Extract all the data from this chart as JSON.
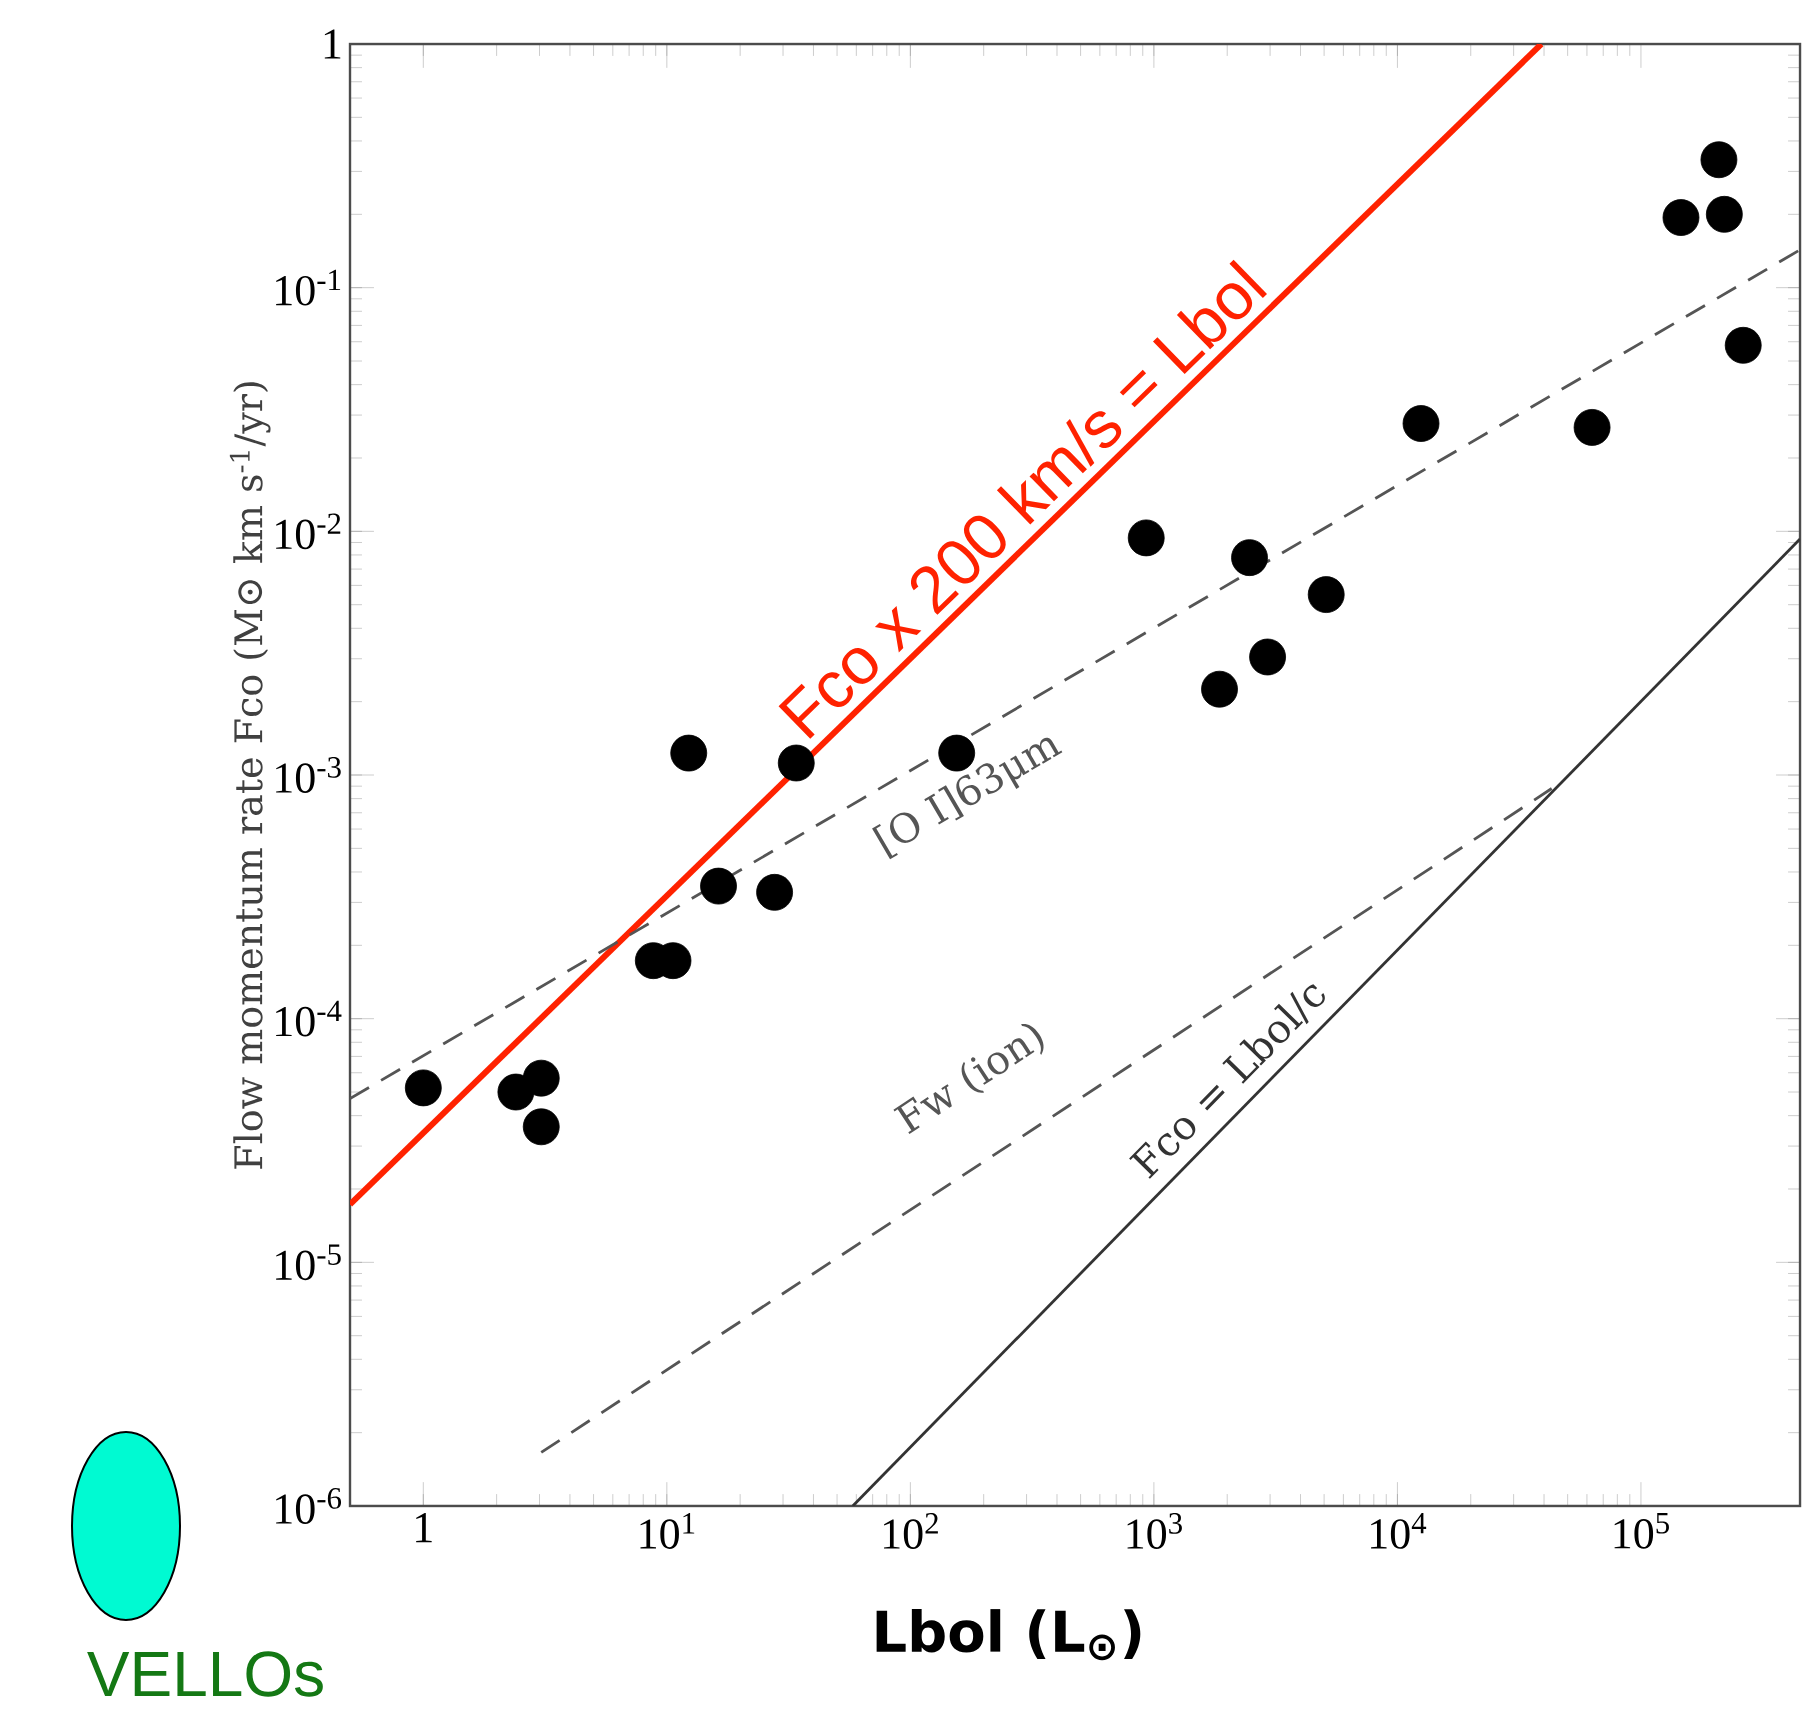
{
  "chart_data": {
    "type": "scatter",
    "xlabel": "Lbol (L$_{⊙}$)",
    "ylabel": "Flow momentum rate Fco (M⊙ km s$^{-1}$/yr)",
    "xlim": [
      0.5,
      450000
    ],
    "ylim": [
      1e-06,
      1
    ],
    "log": "xy",
    "grid": false,
    "xticks": [
      {
        "value": 1,
        "label": "1"
      },
      {
        "value": 10,
        "label": "10$^{1}$"
      },
      {
        "value": 100,
        "label": "10$^{2}$"
      },
      {
        "value": 1000,
        "label": "10$^{3}$"
      },
      {
        "value": 10000,
        "label": "10$^{4}$"
      },
      {
        "value": 100000,
        "label": "10$^{5}$"
      }
    ],
    "yticks": [
      {
        "value": 1e-06,
        "label": "10$^{-6}$"
      },
      {
        "value": 1e-05,
        "label": "10$^{-5}$"
      },
      {
        "value": 0.0001,
        "label": "10$^{-4}$"
      },
      {
        "value": 0.001,
        "label": "10$^{-3}$"
      },
      {
        "value": 0.01,
        "label": "10$^{-2}$"
      },
      {
        "value": 0.1,
        "label": "10$^{-1}$"
      },
      {
        "value": 1,
        "label": "1"
      }
    ],
    "series": [
      {
        "color": "#000000",
        "marker": "circle",
        "x": [
          1,
          2.4,
          3.05,
          3.05,
          8.8,
          10.6,
          16.3,
          27.7,
          12.3,
          34,
          155,
          1860,
          2930,
          2470,
          930,
          5100,
          12500,
          63000,
          146000,
          209000,
          220000,
          263000
        ],
        "values": [
          5.2e-05,
          5e-05,
          5.7e-05,
          3.6e-05,
          0.000173,
          0.000173,
          0.00035,
          0.00033,
          0.00123,
          0.00112,
          0.00123,
          0.00225,
          0.00305,
          0.0078,
          0.0094,
          0.0055,
          0.0277,
          0.0267,
          0.194,
          0.335,
          0.2,
          0.058
        ]
      },
      {
        "type": "line",
        "name": "Fco x 200 km/s = Lbol",
        "color": "#ff2200",
        "line_style": "solid",
        "x": [
          0.5,
          39000
        ],
        "values": [
          1.73e-05,
          1
        ]
      },
      {
        "type": "line",
        "name": "[O I]63μm",
        "color": "#555555",
        "line_style": "dashed",
        "x": [
          0.5,
          450000
        ],
        "values": [
          4.7e-05,
          0.143
        ]
      },
      {
        "type": "line",
        "name": "Fw (ion)",
        "color": "#555555",
        "line_style": "dashed",
        "x": [
          3.05,
          43000
        ],
        "values": [
          1.66e-06,
          0.00088
        ]
      },
      {
        "type": "line",
        "name": "Fco = Lbol/c",
        "color": "#333333",
        "line_style": "solid",
        "x": [
          58,
          450000
        ],
        "values": [
          1e-06,
          0.0093
        ]
      }
    ],
    "annotations": [
      "VELLOs"
    ]
  }
}
